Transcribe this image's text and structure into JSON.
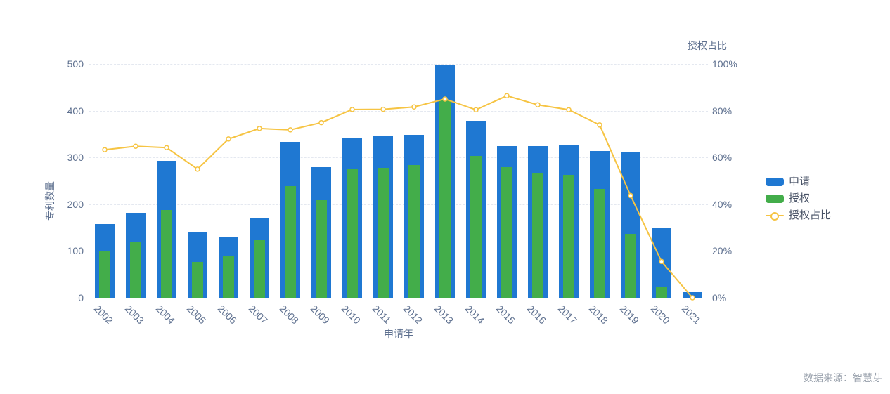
{
  "chart_data": {
    "type": "combo",
    "title": "",
    "x_axis": {
      "label": "申请年",
      "categories": [
        "2002",
        "2003",
        "2004",
        "2005",
        "2006",
        "2007",
        "2008",
        "2009",
        "2010",
        "2011",
        "2012",
        "2013",
        "2014",
        "2015",
        "2016",
        "2017",
        "2018",
        "2019",
        "2020",
        "2021"
      ]
    },
    "y_axis_left": {
      "label": "专利数量",
      "min": 0,
      "max": 500,
      "tick_step": 100
    },
    "y_axis_right": {
      "label": "授权占比",
      "min": 0,
      "max": 100,
      "tick_step": 20,
      "suffix": "%"
    },
    "grid": true,
    "legend_position": "right",
    "series": [
      {
        "name": "申请",
        "type": "bar",
        "axis": "left",
        "color": "#1f78d2",
        "values": [
          158,
          182,
          293,
          140,
          131,
          170,
          333,
          279,
          343,
          345,
          348,
          499,
          378,
          324,
          325,
          327,
          314,
          311,
          148,
          12
        ]
      },
      {
        "name": "授权",
        "type": "bar",
        "axis": "left",
        "color": "#43ad4a",
        "values": [
          100,
          118,
          188,
          77,
          89,
          123,
          239,
          209,
          276,
          278,
          284,
          424,
          304,
          280,
          268,
          263,
          232,
          136,
          23,
          0
        ]
      },
      {
        "name": "授权占比",
        "type": "line",
        "axis": "right",
        "color": "#f6c443",
        "values": [
          63.3,
          64.8,
          64.2,
          55.0,
          67.9,
          72.4,
          71.8,
          74.9,
          80.5,
          80.6,
          81.6,
          85.0,
          80.4,
          86.4,
          82.5,
          80.4,
          73.9,
          43.7,
          15.5,
          0.0
        ]
      }
    ]
  },
  "source_note": "数据来源：智慧芽"
}
